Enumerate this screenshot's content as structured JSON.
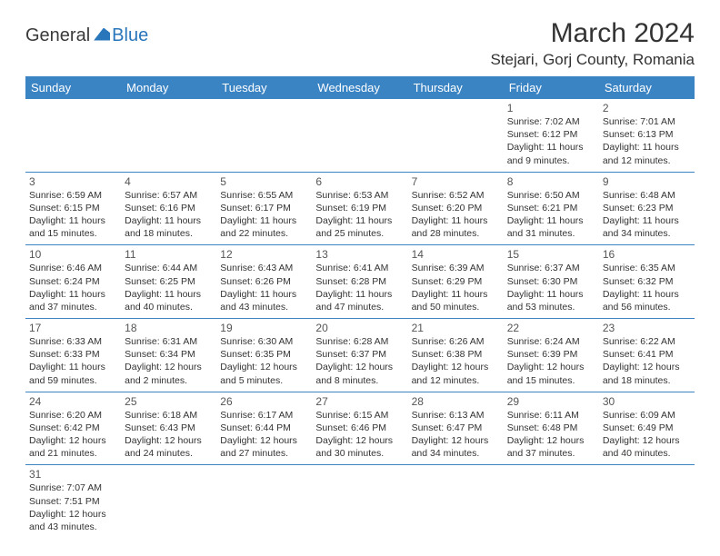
{
  "logo": {
    "general": "General",
    "blue": "Blue"
  },
  "header": {
    "month_title": "March 2024",
    "location": "Stejari, Gorj County, Romania"
  },
  "colors": {
    "header_bg": "#3b84c4",
    "header_text": "#ffffff",
    "logo_blue": "#2976bb",
    "text": "#333333",
    "border": "#3b84c4"
  },
  "day_names": [
    "Sunday",
    "Monday",
    "Tuesday",
    "Wednesday",
    "Thursday",
    "Friday",
    "Saturday"
  ],
  "weeks": [
    [
      null,
      null,
      null,
      null,
      null,
      {
        "num": "1",
        "sunrise": "Sunrise: 7:02 AM",
        "sunset": "Sunset: 6:12 PM",
        "daylight": "Daylight: 11 hours and 9 minutes."
      },
      {
        "num": "2",
        "sunrise": "Sunrise: 7:01 AM",
        "sunset": "Sunset: 6:13 PM",
        "daylight": "Daylight: 11 hours and 12 minutes."
      }
    ],
    [
      {
        "num": "3",
        "sunrise": "Sunrise: 6:59 AM",
        "sunset": "Sunset: 6:15 PM",
        "daylight": "Daylight: 11 hours and 15 minutes."
      },
      {
        "num": "4",
        "sunrise": "Sunrise: 6:57 AM",
        "sunset": "Sunset: 6:16 PM",
        "daylight": "Daylight: 11 hours and 18 minutes."
      },
      {
        "num": "5",
        "sunrise": "Sunrise: 6:55 AM",
        "sunset": "Sunset: 6:17 PM",
        "daylight": "Daylight: 11 hours and 22 minutes."
      },
      {
        "num": "6",
        "sunrise": "Sunrise: 6:53 AM",
        "sunset": "Sunset: 6:19 PM",
        "daylight": "Daylight: 11 hours and 25 minutes."
      },
      {
        "num": "7",
        "sunrise": "Sunrise: 6:52 AM",
        "sunset": "Sunset: 6:20 PM",
        "daylight": "Daylight: 11 hours and 28 minutes."
      },
      {
        "num": "8",
        "sunrise": "Sunrise: 6:50 AM",
        "sunset": "Sunset: 6:21 PM",
        "daylight": "Daylight: 11 hours and 31 minutes."
      },
      {
        "num": "9",
        "sunrise": "Sunrise: 6:48 AM",
        "sunset": "Sunset: 6:23 PM",
        "daylight": "Daylight: 11 hours and 34 minutes."
      }
    ],
    [
      {
        "num": "10",
        "sunrise": "Sunrise: 6:46 AM",
        "sunset": "Sunset: 6:24 PM",
        "daylight": "Daylight: 11 hours and 37 minutes."
      },
      {
        "num": "11",
        "sunrise": "Sunrise: 6:44 AM",
        "sunset": "Sunset: 6:25 PM",
        "daylight": "Daylight: 11 hours and 40 minutes."
      },
      {
        "num": "12",
        "sunrise": "Sunrise: 6:43 AM",
        "sunset": "Sunset: 6:26 PM",
        "daylight": "Daylight: 11 hours and 43 minutes."
      },
      {
        "num": "13",
        "sunrise": "Sunrise: 6:41 AM",
        "sunset": "Sunset: 6:28 PM",
        "daylight": "Daylight: 11 hours and 47 minutes."
      },
      {
        "num": "14",
        "sunrise": "Sunrise: 6:39 AM",
        "sunset": "Sunset: 6:29 PM",
        "daylight": "Daylight: 11 hours and 50 minutes."
      },
      {
        "num": "15",
        "sunrise": "Sunrise: 6:37 AM",
        "sunset": "Sunset: 6:30 PM",
        "daylight": "Daylight: 11 hours and 53 minutes."
      },
      {
        "num": "16",
        "sunrise": "Sunrise: 6:35 AM",
        "sunset": "Sunset: 6:32 PM",
        "daylight": "Daylight: 11 hours and 56 minutes."
      }
    ],
    [
      {
        "num": "17",
        "sunrise": "Sunrise: 6:33 AM",
        "sunset": "Sunset: 6:33 PM",
        "daylight": "Daylight: 11 hours and 59 minutes."
      },
      {
        "num": "18",
        "sunrise": "Sunrise: 6:31 AM",
        "sunset": "Sunset: 6:34 PM",
        "daylight": "Daylight: 12 hours and 2 minutes."
      },
      {
        "num": "19",
        "sunrise": "Sunrise: 6:30 AM",
        "sunset": "Sunset: 6:35 PM",
        "daylight": "Daylight: 12 hours and 5 minutes."
      },
      {
        "num": "20",
        "sunrise": "Sunrise: 6:28 AM",
        "sunset": "Sunset: 6:37 PM",
        "daylight": "Daylight: 12 hours and 8 minutes."
      },
      {
        "num": "21",
        "sunrise": "Sunrise: 6:26 AM",
        "sunset": "Sunset: 6:38 PM",
        "daylight": "Daylight: 12 hours and 12 minutes."
      },
      {
        "num": "22",
        "sunrise": "Sunrise: 6:24 AM",
        "sunset": "Sunset: 6:39 PM",
        "daylight": "Daylight: 12 hours and 15 minutes."
      },
      {
        "num": "23",
        "sunrise": "Sunrise: 6:22 AM",
        "sunset": "Sunset: 6:41 PM",
        "daylight": "Daylight: 12 hours and 18 minutes."
      }
    ],
    [
      {
        "num": "24",
        "sunrise": "Sunrise: 6:20 AM",
        "sunset": "Sunset: 6:42 PM",
        "daylight": "Daylight: 12 hours and 21 minutes."
      },
      {
        "num": "25",
        "sunrise": "Sunrise: 6:18 AM",
        "sunset": "Sunset: 6:43 PM",
        "daylight": "Daylight: 12 hours and 24 minutes."
      },
      {
        "num": "26",
        "sunrise": "Sunrise: 6:17 AM",
        "sunset": "Sunset: 6:44 PM",
        "daylight": "Daylight: 12 hours and 27 minutes."
      },
      {
        "num": "27",
        "sunrise": "Sunrise: 6:15 AM",
        "sunset": "Sunset: 6:46 PM",
        "daylight": "Daylight: 12 hours and 30 minutes."
      },
      {
        "num": "28",
        "sunrise": "Sunrise: 6:13 AM",
        "sunset": "Sunset: 6:47 PM",
        "daylight": "Daylight: 12 hours and 34 minutes."
      },
      {
        "num": "29",
        "sunrise": "Sunrise: 6:11 AM",
        "sunset": "Sunset: 6:48 PM",
        "daylight": "Daylight: 12 hours and 37 minutes."
      },
      {
        "num": "30",
        "sunrise": "Sunrise: 6:09 AM",
        "sunset": "Sunset: 6:49 PM",
        "daylight": "Daylight: 12 hours and 40 minutes."
      }
    ],
    [
      {
        "num": "31",
        "sunrise": "Sunrise: 7:07 AM",
        "sunset": "Sunset: 7:51 PM",
        "daylight": "Daylight: 12 hours and 43 minutes."
      },
      null,
      null,
      null,
      null,
      null,
      null
    ]
  ]
}
